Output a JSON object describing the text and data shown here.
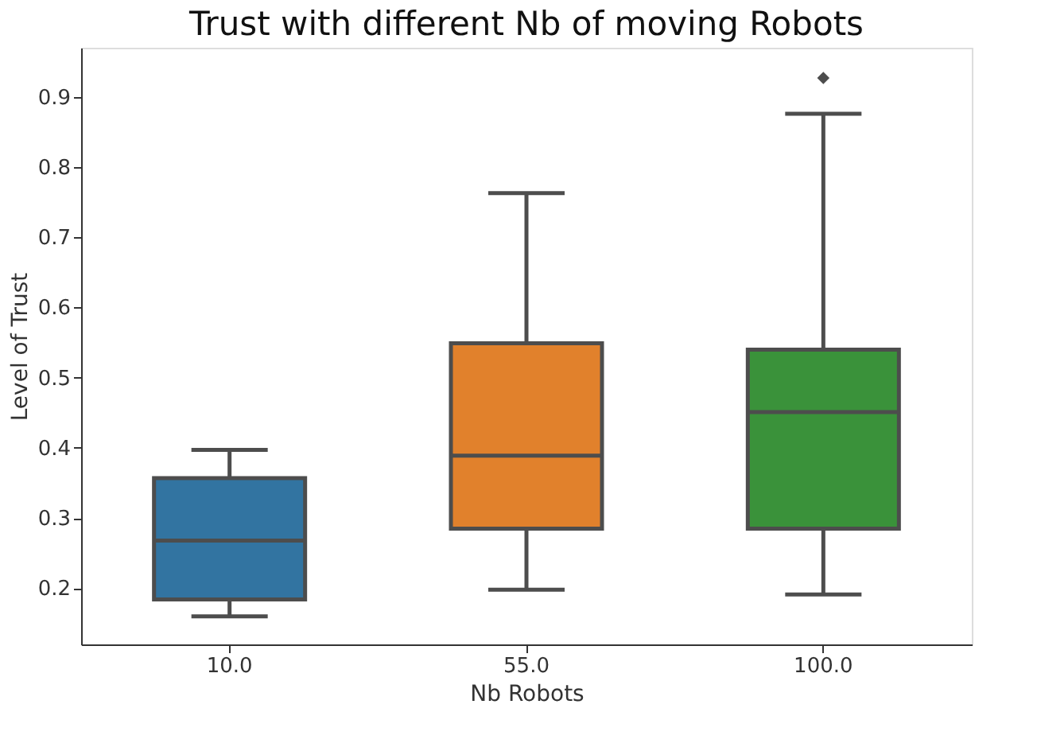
{
  "chart_data": {
    "type": "box",
    "title": "Trust with different Nb of moving Robots",
    "xlabel": "Nb Robots",
    "ylabel": "Level of Trust",
    "categories": [
      "10.0",
      "55.0",
      "100.0"
    ],
    "colors": [
      "#3274a1",
      "#e1812c",
      "#3a923a"
    ],
    "boxes": [
      {
        "low": 0.16,
        "q1": 0.184,
        "median": 0.268,
        "q3": 0.357,
        "high": 0.397
      },
      {
        "low": 0.198,
        "q1": 0.285,
        "median": 0.389,
        "q3": 0.549,
        "high": 0.763
      },
      {
        "low": 0.191,
        "q1": 0.285,
        "median": 0.451,
        "q3": 0.54,
        "high": 0.876,
        "outliers": [
          0.927
        ]
      }
    ],
    "ylim": [
      0.12,
      0.97
    ],
    "yticks": [
      0.2,
      0.3,
      0.4,
      0.5,
      0.6,
      0.7,
      0.8,
      0.9
    ],
    "grid": false,
    "legend": false
  }
}
